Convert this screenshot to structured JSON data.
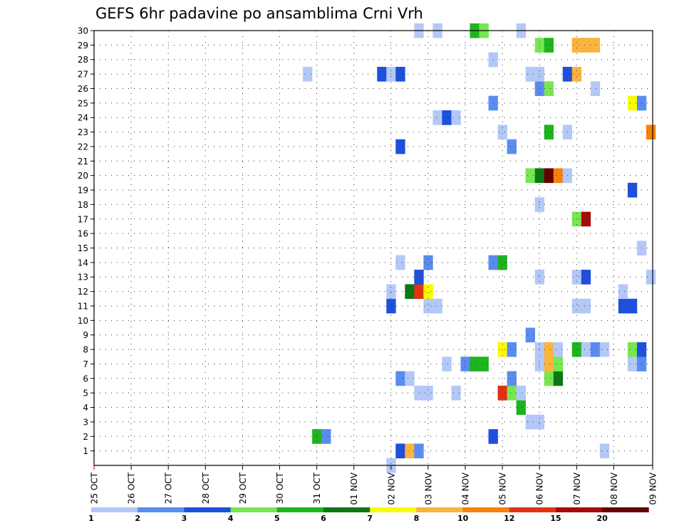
{
  "chart_data": {
    "type": "heatmap",
    "title": "GEFS 6hr padavine po ansamblima Crni Vrh",
    "xlabel": "",
    "ylabel": "",
    "x_tick_labels": [
      "25 OCT",
      "26 OCT",
      "27 OCT",
      "28 OCT",
      "29 OCT",
      "30 OCT",
      "31 OCT",
      "01 NOV",
      "02 NOV",
      "03 NOV",
      "04 NOV",
      "05 NOV",
      "06 NOV",
      "07 NOV",
      "08 NOV",
      "09 NOV"
    ],
    "y_tick_labels": [
      "1",
      "2",
      "3",
      "4",
      "5",
      "6",
      "7",
      "8",
      "9",
      "10",
      "11",
      "12",
      "13",
      "14",
      "15",
      "16",
      "17",
      "18",
      "19",
      "20",
      "21",
      "22",
      "23",
      "24",
      "25",
      "26",
      "27",
      "28",
      "29",
      "30"
    ],
    "xlim_days": [
      0,
      15.25
    ],
    "ylim": [
      0,
      30
    ],
    "grid": true,
    "legend": {
      "placement": "bottom",
      "labels": [
        "1",
        "2",
        "3",
        "4",
        "5",
        "6",
        "7",
        "8",
        "10",
        "12",
        "15",
        "20"
      ],
      "colors": [
        "#b4c8f8",
        "#5a8cf0",
        "#1e50dc",
        "#78e650",
        "#1eb41e",
        "#0a7814",
        "#fafa00",
        "#fab43c",
        "#f5820a",
        "#e13214",
        "#a50a0a",
        "#640000"
      ]
    },
    "colors": {
      "1-2": "#b4c8f8",
      "2-3": "#5a8cf0",
      "3-4": "#1e50dc",
      "4-5": "#78e650",
      "5-6": "#1eb41e",
      "6-7": "#0a7814",
      "7-8": "#fafa00",
      "8-10": "#fab43c",
      "10-12": "#f5820a",
      "12-15": "#e13214",
      "15-20": "#a50a0a",
      "20+": "#640000"
    },
    "cells_note": "each cell: [day offset from 25 OCT 00Z, ensemble member, precipitation mm]",
    "cells": [
      [
        8.0,
        0,
        1.5
      ],
      [
        8.25,
        1,
        3.5
      ],
      [
        8.5,
        1,
        9
      ],
      [
        8.75,
        1,
        2.5
      ],
      [
        13.75,
        1,
        1.5
      ],
      [
        6.0,
        2,
        5.5
      ],
      [
        6.25,
        2,
        2.5
      ],
      [
        10.75,
        2,
        3.5
      ],
      [
        11.75,
        3,
        1.5
      ],
      [
        12.0,
        3,
        1.5
      ],
      [
        11.5,
        4,
        5.5
      ],
      [
        8.75,
        5,
        1.5
      ],
      [
        9.0,
        5,
        1.5
      ],
      [
        9.75,
        5,
        1.5
      ],
      [
        11.0,
        5,
        13
      ],
      [
        11.25,
        5,
        4.5
      ],
      [
        11.5,
        5,
        1.5
      ],
      [
        8.25,
        6,
        2.5
      ],
      [
        8.5,
        6,
        1.5
      ],
      [
        11.25,
        6,
        2.5
      ],
      [
        12.25,
        6,
        4.5
      ],
      [
        12.5,
        6,
        6.5
      ],
      [
        9.5,
        7,
        1.5
      ],
      [
        10.0,
        7,
        2.5
      ],
      [
        10.25,
        7,
        5.5
      ],
      [
        10.5,
        7,
        5.5
      ],
      [
        12.0,
        7,
        1.5
      ],
      [
        12.25,
        7,
        9
      ],
      [
        12.5,
        7,
        4.5
      ],
      [
        14.5,
        7,
        1.5
      ],
      [
        14.75,
        7,
        2.5
      ],
      [
        11.0,
        8,
        7.5
      ],
      [
        11.25,
        8,
        2.5
      ],
      [
        12.0,
        8,
        1.5
      ],
      [
        12.25,
        8,
        9
      ],
      [
        12.5,
        8,
        1.5
      ],
      [
        13.0,
        8,
        5.5
      ],
      [
        13.25,
        8,
        1.5
      ],
      [
        13.5,
        8,
        2.5
      ],
      [
        13.75,
        8,
        1.5
      ],
      [
        14.5,
        8,
        4.5
      ],
      [
        14.75,
        8,
        3.5
      ],
      [
        11.75,
        9,
        2.5
      ],
      [
        8.0,
        11,
        3.5
      ],
      [
        9.0,
        11,
        1.5
      ],
      [
        9.25,
        11,
        1.5
      ],
      [
        13.0,
        11,
        1.5
      ],
      [
        13.25,
        11,
        1.5
      ],
      [
        14.25,
        11,
        3.5
      ],
      [
        14.5,
        11,
        3.5
      ],
      [
        8.0,
        12,
        1.5
      ],
      [
        8.5,
        12,
        6.5
      ],
      [
        8.75,
        12,
        13
      ],
      [
        9.0,
        12,
        7.5
      ],
      [
        14.25,
        12,
        1.5
      ],
      [
        8.75,
        13,
        3.5
      ],
      [
        12.0,
        13,
        1.5
      ],
      [
        13.0,
        13,
        1.5
      ],
      [
        13.25,
        13,
        3.5
      ],
      [
        15.0,
        13,
        1.5
      ],
      [
        8.25,
        14,
        1.5
      ],
      [
        9.0,
        14,
        2.5
      ],
      [
        10.75,
        14,
        2.5
      ],
      [
        11.0,
        14,
        5.5
      ],
      [
        14.75,
        15,
        1.5
      ],
      [
        13.0,
        17,
        4.5
      ],
      [
        13.25,
        17,
        16
      ],
      [
        12.0,
        18,
        1.5
      ],
      [
        14.5,
        19,
        3.5
      ],
      [
        11.75,
        20,
        4.5
      ],
      [
        12.0,
        20,
        6.5
      ],
      [
        12.25,
        20,
        22
      ],
      [
        12.5,
        20,
        11
      ],
      [
        12.75,
        20,
        1.5
      ],
      [
        8.25,
        22,
        3.5
      ],
      [
        11.25,
        22,
        2.5
      ],
      [
        11.0,
        23,
        1.5
      ],
      [
        12.25,
        23,
        5.5
      ],
      [
        12.75,
        23,
        1.5
      ],
      [
        15.0,
        23,
        11
      ],
      [
        9.25,
        24,
        1.5
      ],
      [
        9.5,
        24,
        3.5
      ],
      [
        9.75,
        24,
        1.5
      ],
      [
        10.75,
        25,
        2.5
      ],
      [
        14.5,
        25,
        7.5
      ],
      [
        14.75,
        25,
        2.5
      ],
      [
        12.0,
        26,
        2.5
      ],
      [
        12.25,
        26,
        4.5
      ],
      [
        13.5,
        26,
        1.5
      ],
      [
        5.75,
        27,
        1.5
      ],
      [
        7.75,
        27,
        3.5
      ],
      [
        8.0,
        27,
        1.5
      ],
      [
        8.25,
        27,
        3.5
      ],
      [
        11.75,
        27,
        1.5
      ],
      [
        12.0,
        27,
        1.5
      ],
      [
        12.75,
        27,
        3.5
      ],
      [
        13.0,
        27,
        9
      ],
      [
        10.75,
        28,
        1.5
      ],
      [
        12.0,
        29,
        4.5
      ],
      [
        12.25,
        29,
        5.5
      ],
      [
        13.0,
        29,
        9
      ],
      [
        13.25,
        29,
        9
      ],
      [
        13.5,
        29,
        9
      ],
      [
        8.75,
        30,
        1.5
      ],
      [
        9.25,
        30,
        1.5
      ],
      [
        10.25,
        30,
        5.5
      ],
      [
        10.5,
        30,
        4.5
      ],
      [
        11.5,
        30,
        1.5
      ]
    ]
  }
}
